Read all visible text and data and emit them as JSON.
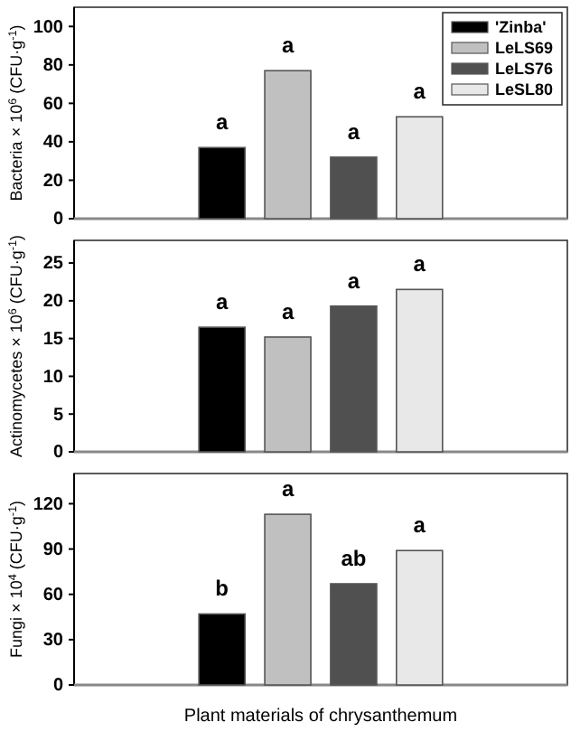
{
  "chart_data": [
    {
      "type": "bar",
      "ylabel": "Bacteria × 10$^{6}$ (CFU·g$^{-1}$)",
      "categories": [
        null
      ],
      "ylim": [
        0,
        110
      ],
      "yticks": [
        0,
        20,
        40,
        60,
        80,
        100
      ],
      "tick_labels": "y",
      "legend": "top right",
      "series": [
        {
          "name": "'Zinba'",
          "color": "#000000",
          "values": [
            37
          ],
          "value_labels": [
            "a"
          ]
        },
        {
          "name": "LeLS69",
          "color": "#c0c0c0",
          "values": [
            77
          ],
          "value_labels": [
            "a"
          ]
        },
        {
          "name": "LeLS76",
          "color": "#505050",
          "values": [
            32
          ],
          "value_labels": [
            "a"
          ]
        },
        {
          "name": "LeSL80",
          "color": "#e8e8e8",
          "values": [
            53
          ],
          "value_labels": [
            "a"
          ]
        }
      ]
    },
    {
      "type": "bar",
      "ylabel": "Actinomycetes × 10$^{6}$ (CFU·g$^{-1}$)",
      "categories": [
        null
      ],
      "ylim": [
        0,
        28
      ],
      "yticks": [
        0,
        5,
        10,
        15,
        20,
        25
      ],
      "tick_labels": "y",
      "series": [
        {
          "color": "#000000",
          "values": [
            16.5
          ],
          "value_labels": [
            "a"
          ]
        },
        {
          "color": "#c0c0c0",
          "values": [
            15.2
          ],
          "value_labels": [
            "a"
          ]
        },
        {
          "color": "#505050",
          "values": [
            19.3
          ],
          "value_labels": [
            "a"
          ]
        },
        {
          "color": "#e8e8e8",
          "values": [
            21.5
          ],
          "value_labels": [
            "a"
          ]
        }
      ]
    },
    {
      "type": "bar",
      "ylabel": "Fungi × 10$^{4}$ (CFU·g$^{-1}$)",
      "xlabel": "Plant materials of chrysanthemum",
      "categories": [
        null
      ],
      "ylim": [
        0,
        140
      ],
      "yticks": [
        0,
        30,
        60,
        90,
        120
      ],
      "tick_labels": "y",
      "series": [
        {
          "color": "#000000",
          "values": [
            47
          ],
          "value_labels": [
            "b"
          ]
        },
        {
          "color": "#c0c0c0",
          "values": [
            113
          ],
          "value_labels": [
            "a"
          ]
        },
        {
          "color": "#505050",
          "values": [
            67
          ],
          "value_labels": [
            "ab"
          ]
        },
        {
          "color": "#e8e8e8",
          "values": [
            89
          ],
          "value_labels": [
            "a"
          ]
        }
      ]
    }
  ]
}
